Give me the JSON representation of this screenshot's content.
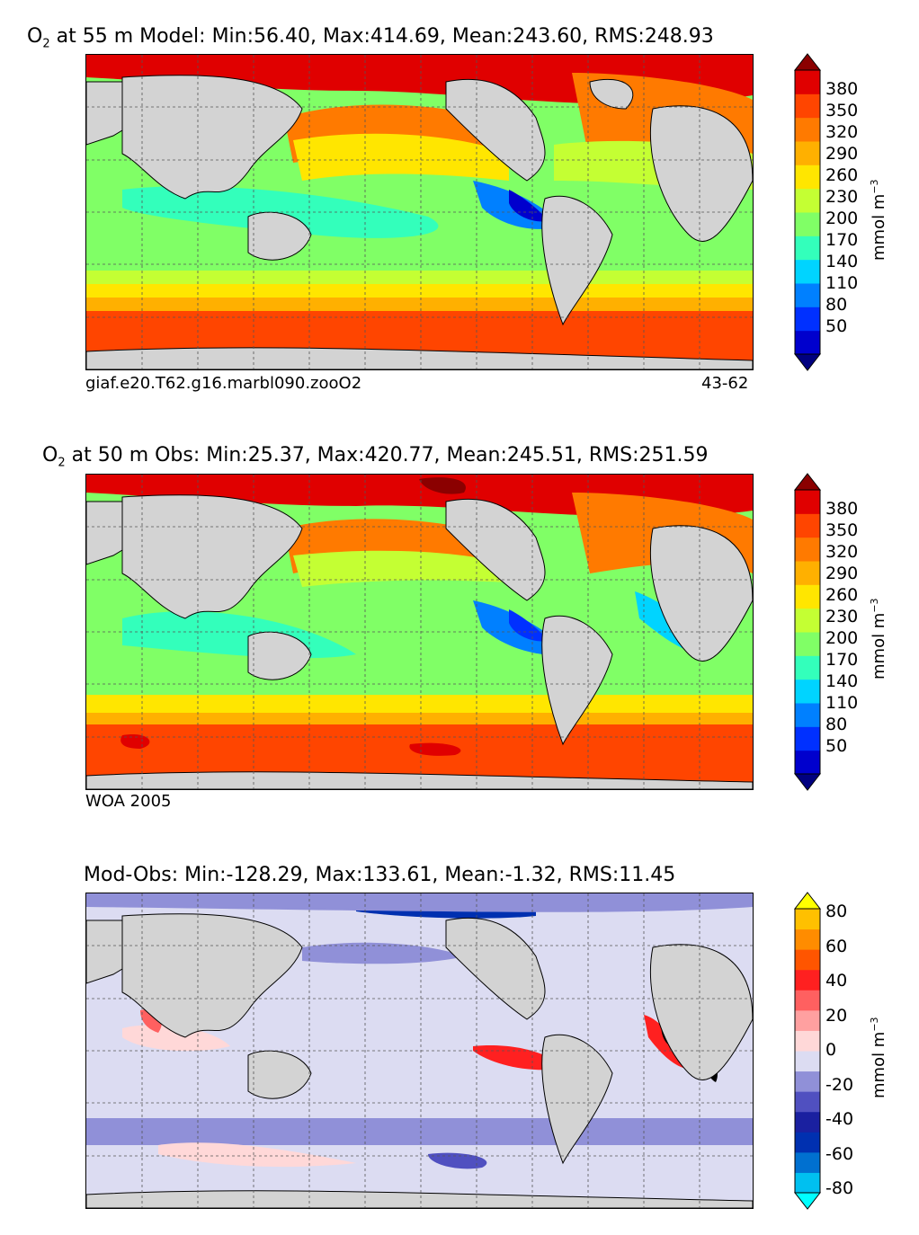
{
  "panels": [
    {
      "id": "model",
      "title_species": "O",
      "title_sub": "2",
      "title_rest": " at 55 m Model: Min:56.40, Max:414.69, Mean:243.60, RMS:248.93",
      "footer_left": "giaf.e20.T62.g16.marbl090.zooO2",
      "footer_right": "43-62",
      "colorbar": {
        "ticks": [
          "380",
          "350",
          "320",
          "290",
          "260",
          "230",
          "200",
          "170",
          "140",
          "110",
          "80",
          "50"
        ],
        "unit": "mmol m",
        "unit_exp": "−3",
        "colors": [
          "#000080",
          "#0000cd",
          "#0030ff",
          "#0080ff",
          "#00d4ff",
          "#33ffbb",
          "#80ff66",
          "#c4ff33",
          "#ffe600",
          "#ffb000",
          "#ff7a00",
          "#ff4500",
          "#e00000",
          "#8b0000"
        ]
      }
    },
    {
      "id": "obs",
      "title_species": "O",
      "title_sub": "2",
      "title_rest": " at 50 m Obs: Min:25.37, Max:420.77, Mean:245.51, RMS:251.59",
      "footer_left": "WOA 2005",
      "footer_right": "",
      "colorbar": {
        "ticks": [
          "380",
          "350",
          "320",
          "290",
          "260",
          "230",
          "200",
          "170",
          "140",
          "110",
          "80",
          "50"
        ],
        "unit": "mmol m",
        "unit_exp": "−3",
        "colors": [
          "#000080",
          "#0000cd",
          "#0030ff",
          "#0080ff",
          "#00d4ff",
          "#33ffbb",
          "#80ff66",
          "#c4ff33",
          "#ffe600",
          "#ffb000",
          "#ff7a00",
          "#ff4500",
          "#e00000",
          "#8b0000"
        ]
      }
    },
    {
      "id": "diff",
      "title_species": "",
      "title_sub": "",
      "title_rest": "Mod-Obs: Min:-128.29, Max:133.61, Mean:-1.32, RMS:11.45",
      "footer_left": "",
      "footer_right": "",
      "colorbar": {
        "ticks": [
          "80",
          "60",
          "40",
          "20",
          "0",
          "-20",
          "-40",
          "-60",
          "-80"
        ],
        "unit": "mmol m",
        "unit_exp": "−3",
        "colors": [
          "#00ffff",
          "#00c0f0",
          "#0070d0",
          "#0030b0",
          "#1a20a0",
          "#5050c0",
          "#9090d8",
          "#dcdcf2",
          "#ffd8d8",
          "#ffa0a0",
          "#ff6060",
          "#ff2020",
          "#ff5500",
          "#ff8c00",
          "#ffc000",
          "#ffff00"
        ]
      }
    }
  ]
}
